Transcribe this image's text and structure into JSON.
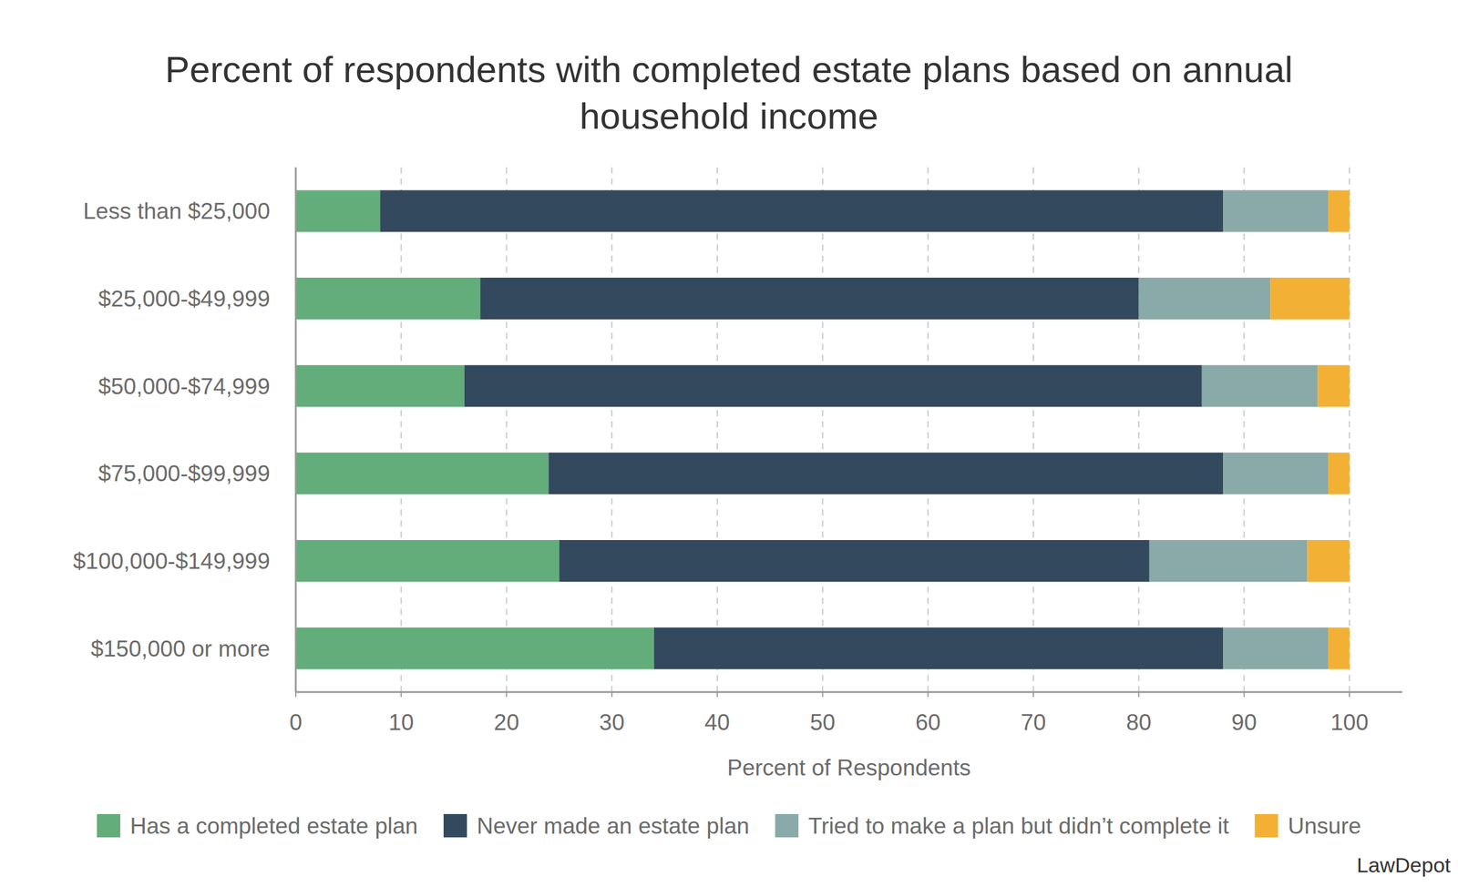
{
  "chart_data": {
    "type": "bar",
    "orientation": "horizontal",
    "stacked": true,
    "title": "Percent of respondents with completed estate plans based on annual household income",
    "x_label": "Percent of Respondents",
    "categories": [
      "Less than $25,000",
      "$25,000-$49,999",
      "$50,000-$74,999",
      "$75,000-$99,999",
      "$100,000-$149,999",
      "$150,000 or more"
    ],
    "series": [
      {
        "name": "Has a completed estate plan",
        "color": "#63ad7b",
        "values": [
          8,
          17.5,
          16,
          24,
          25,
          34
        ]
      },
      {
        "name": "Never made an estate plan",
        "color": "#33495e",
        "values": [
          80,
          62.5,
          70,
          64,
          56,
          54
        ]
      },
      {
        "name": "Tried to make a plan but didn’t complete it",
        "color": "#89aaa8",
        "values": [
          10,
          12.5,
          11,
          10,
          15,
          10
        ]
      },
      {
        "name": "Unsure",
        "color": "#f2b134",
        "values": [
          2,
          7.5,
          3,
          2,
          4,
          2
        ]
      }
    ],
    "xlim": [
      0,
      105
    ],
    "xticks": [
      0,
      10,
      20,
      30,
      40,
      50,
      60,
      70,
      80,
      90,
      100
    ],
    "grid": true,
    "legend": "bottom",
    "annotations": [
      "LawDepot"
    ]
  }
}
